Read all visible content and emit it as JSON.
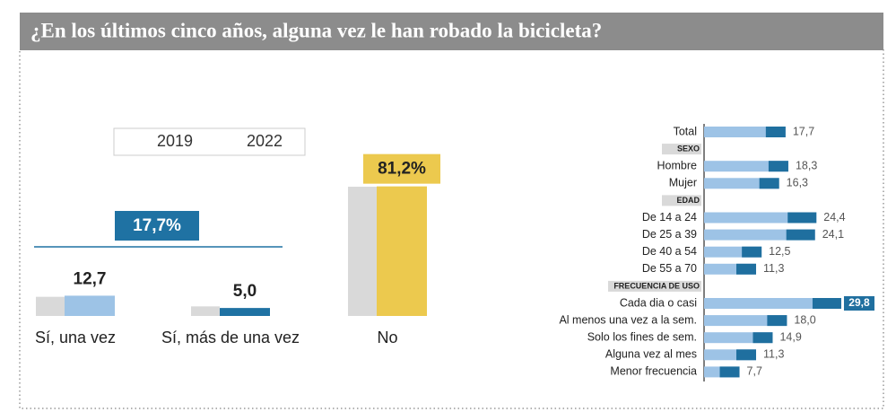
{
  "header": {
    "title": "¿En los últimos cinco años, alguna vez le han robado la bicicleta?"
  },
  "chart_data": [
    {
      "type": "bar",
      "categories": [
        "Sí, una vez",
        "Sí, más de una vez",
        "No"
      ],
      "series": [
        {
          "name": "2019",
          "color": "#d9d9d9",
          "values": [
            12,
            6,
            81
          ]
        },
        {
          "name": "2022",
          "colors": [
            "#9dc3e6",
            "#1f72a3",
            "#ecc94e"
          ],
          "values": [
            12.7,
            5.0,
            81.2
          ],
          "value_labels": [
            "12,7",
            "5,0",
            "81,2%"
          ]
        }
      ],
      "total": {
        "value": 17.7,
        "label": "17,7%"
      },
      "ylim": [
        0,
        90
      ]
    },
    {
      "type": "hbar",
      "categories": [
        "Total",
        "SEXO",
        "Hombre",
        "Mujer",
        "EDAD",
        "De 14 a 24",
        "De 25 a 39",
        "De 40 a 54",
        "De 55 a 70",
        "FRECUENCIA DE USO",
        "Cada dia o casi",
        "Al menos una vez a la sem.",
        "Solo los fines de sem.",
        "Alguna vez al mes",
        "Menor frecuencia"
      ],
      "values": [
        17.7,
        null,
        18.3,
        16.3,
        null,
        24.4,
        24.1,
        12.5,
        11.3,
        null,
        29.8,
        18.0,
        14.9,
        11.3,
        7.7
      ],
      "value_labels": [
        "17,7",
        null,
        "18,3",
        "16,3",
        null,
        "24,4",
        "24,1",
        "12,5",
        "11,3",
        null,
        "29,8",
        "18,0",
        "14,9",
        "11,3",
        "7,7"
      ],
      "color": "#9dc3e6",
      "accent_color": "#1f6f9f",
      "highlight": 10,
      "xlim": [
        0,
        30
      ]
    }
  ]
}
